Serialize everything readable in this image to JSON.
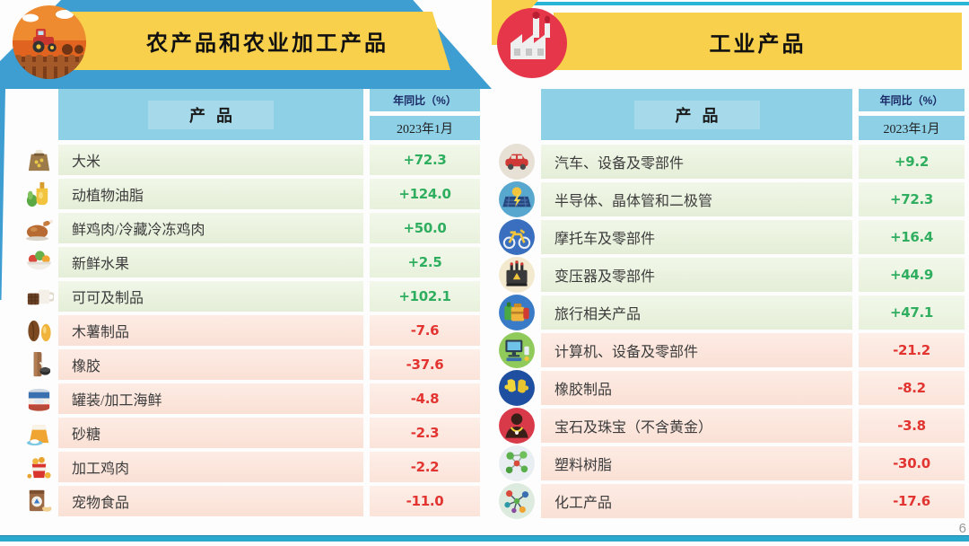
{
  "page": {
    "page_number": "6"
  },
  "left_panel": {
    "title": "农产品和农业加工产品",
    "header": {
      "product": "产品",
      "yoy": "年同比（%）",
      "period": "2023年1月"
    },
    "rows": [
      {
        "icon": "rice-sack-icon",
        "label": "大米",
        "value": "+72.3"
      },
      {
        "icon": "cooking-oil-icon",
        "label": "动植物油脂",
        "value": "+124.0"
      },
      {
        "icon": "roast-chicken-icon",
        "label": "鲜鸡肉/冷藏冷冻鸡肉",
        "value": "+50.0"
      },
      {
        "icon": "fresh-fruit-icon",
        "label": "新鲜水果",
        "value": "+2.5"
      },
      {
        "icon": "cocoa-icon",
        "label": "可可及制品",
        "value": "+102.1"
      },
      {
        "icon": "cassava-icon",
        "label": "木薯制品",
        "value": "-7.6"
      },
      {
        "icon": "rubber-icon",
        "label": "橡胶",
        "value": "-37.6"
      },
      {
        "icon": "canned-seafood-icon",
        "label": "罐装/加工海鲜",
        "value": "-4.8"
      },
      {
        "icon": "sugar-icon",
        "label": "砂糖",
        "value": "-2.3"
      },
      {
        "icon": "fried-chicken-icon",
        "label": "加工鸡肉",
        "value": "-2.2"
      },
      {
        "icon": "pet-food-icon",
        "label": "宠物食品",
        "value": "-11.0"
      }
    ]
  },
  "right_panel": {
    "title": "工业产品",
    "header": {
      "product": "产品",
      "yoy": "年同比（%）",
      "period": "2023年1月"
    },
    "rows": [
      {
        "icon": "car-icon",
        "label": "汽车、设备及零部件",
        "value": "+9.2"
      },
      {
        "icon": "semiconductor-icon",
        "label": "半导体、晶体管和二极管",
        "value": "+72.3"
      },
      {
        "icon": "motorcycle-icon",
        "label": "摩托车及零部件",
        "value": "+16.4"
      },
      {
        "icon": "transformer-icon",
        "label": "变压器及零部件",
        "value": "+44.9"
      },
      {
        "icon": "travel-icon",
        "label": "旅行相关产品",
        "value": "+47.1"
      },
      {
        "icon": "computer-icon",
        "label": "计算机、设备及零部件",
        "value": "-21.2"
      },
      {
        "icon": "rubber-gloves-icon",
        "label": "橡胶制品",
        "value": "-8.2"
      },
      {
        "icon": "jewelry-icon",
        "label": "宝石及珠宝（不含黄金）",
        "value": "-3.8"
      },
      {
        "icon": "plastic-resin-icon",
        "label": "塑料树脂",
        "value": "-30.0"
      },
      {
        "icon": "chemical-icon",
        "label": "化工产品",
        "value": "-17.6"
      }
    ]
  },
  "colors": {
    "accent_blue": "#3e9ed2",
    "banner_yellow": "#f8d04c",
    "header_cell_blue": "#8ed0e6",
    "teal_line": "#2ab5d6",
    "positive_text": "#2fae5f",
    "negative_text": "#e23430",
    "positive_row_bg": "#e8f1dc",
    "negative_row_bg": "#fbe3d9"
  },
  "chart_data": [
    {
      "type": "table",
      "title": "农产品和农业加工产品",
      "columns": [
        "产品",
        "年同比（%） 2023年1月"
      ],
      "categories": [
        "大米",
        "动植物油脂",
        "鲜鸡肉/冷藏冷冻鸡肉",
        "新鲜水果",
        "可可及制品",
        "木薯制品",
        "橡胶",
        "罐装/加工海鲜",
        "砂糖",
        "加工鸡肉",
        "宠物食品"
      ],
      "values": [
        72.3,
        124.0,
        50.0,
        2.5,
        102.1,
        -7.6,
        -37.6,
        -4.8,
        -2.3,
        -2.2,
        -11.0
      ]
    },
    {
      "type": "table",
      "title": "工业产品",
      "columns": [
        "产品",
        "年同比（%） 2023年1月"
      ],
      "categories": [
        "汽车、设备及零部件",
        "半导体、晶体管和二极管",
        "摩托车及零部件",
        "变压器及零部件",
        "旅行相关产品",
        "计算机、设备及零部件",
        "橡胶制品",
        "宝石及珠宝（不含黄金）",
        "塑料树脂",
        "化工产品"
      ],
      "values": [
        9.2,
        72.3,
        16.4,
        44.9,
        47.1,
        -21.2,
        -8.2,
        -3.8,
        -30.0,
        -17.6
      ]
    }
  ]
}
